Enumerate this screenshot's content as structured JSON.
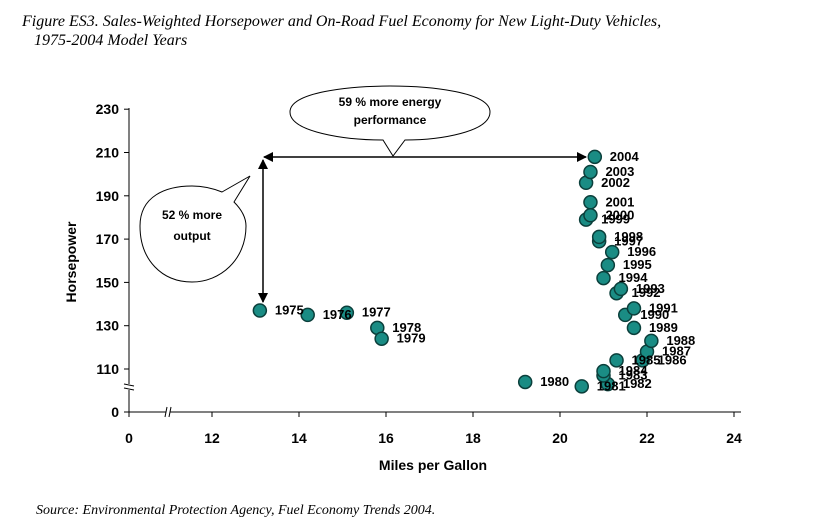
{
  "figure": {
    "caption_line1": "Figure ES3. Sales-Weighted Horsepower and On-Road Fuel Economy for New Light-Duty Vehicles,",
    "caption_line2": "1975-2004 Model Years",
    "source": "Source: Environmental Protection Agency, Fuel Economy Trends 2004."
  },
  "colors": {
    "marker_fill": "#1a8c84",
    "marker_stroke": "#0b3f3b",
    "axis": "#000000"
  },
  "chart_data": {
    "type": "scatter",
    "title": "",
    "xlabel": "Miles per Gallon",
    "ylabel": "Horsepower",
    "x_ticks": [
      0,
      12,
      14,
      16,
      18,
      20,
      22,
      24
    ],
    "y_ticks": [
      0,
      110,
      130,
      150,
      170,
      190,
      210,
      230
    ],
    "xlim": [
      12,
      24
    ],
    "ylim": [
      98,
      230
    ],
    "axis_break": {
      "x": "between 0 and 12",
      "y": "between 0 and 110"
    },
    "grid": false,
    "legend": "none",
    "points": [
      {
        "label": "1975",
        "x": 13.1,
        "y": 137
      },
      {
        "label": "1976",
        "x": 14.2,
        "y": 135
      },
      {
        "label": "1977",
        "x": 15.1,
        "y": 136
      },
      {
        "label": "1978",
        "x": 15.8,
        "y": 129
      },
      {
        "label": "1979",
        "x": 15.9,
        "y": 124
      },
      {
        "label": "1980",
        "x": 19.2,
        "y": 104
      },
      {
        "label": "1981",
        "x": 20.5,
        "y": 102
      },
      {
        "label": "1982",
        "x": 21.1,
        "y": 103
      },
      {
        "label": "1983",
        "x": 21.0,
        "y": 107
      },
      {
        "label": "1984",
        "x": 21.0,
        "y": 109
      },
      {
        "label": "1985",
        "x": 21.3,
        "y": 114
      },
      {
        "label": "1986",
        "x": 21.9,
        "y": 114
      },
      {
        "label": "1987",
        "x": 22.0,
        "y": 118
      },
      {
        "label": "1988",
        "x": 22.1,
        "y": 123
      },
      {
        "label": "1989",
        "x": 21.7,
        "y": 129
      },
      {
        "label": "1990",
        "x": 21.5,
        "y": 135
      },
      {
        "label": "1991",
        "x": 21.7,
        "y": 138
      },
      {
        "label": "1992",
        "x": 21.3,
        "y": 145
      },
      {
        "label": "1993",
        "x": 21.4,
        "y": 147
      },
      {
        "label": "1994",
        "x": 21.0,
        "y": 152
      },
      {
        "label": "1995",
        "x": 21.1,
        "y": 158
      },
      {
        "label": "1996",
        "x": 21.2,
        "y": 164
      },
      {
        "label": "1997",
        "x": 20.9,
        "y": 169
      },
      {
        "label": "1998",
        "x": 20.9,
        "y": 171
      },
      {
        "label": "1999",
        "x": 20.6,
        "y": 179
      },
      {
        "label": "2000",
        "x": 20.7,
        "y": 181
      },
      {
        "label": "2001",
        "x": 20.7,
        "y": 187
      },
      {
        "label": "2002",
        "x": 20.6,
        "y": 196
      },
      {
        "label": "2003",
        "x": 20.7,
        "y": 201
      },
      {
        "label": "2004",
        "x": 20.8,
        "y": 208
      }
    ],
    "annotations": {
      "energy_callout": {
        "line1": "59 % more energy",
        "line2": "performance"
      },
      "output_callout": {
        "line1": "52 % more",
        "line2": "output"
      }
    }
  }
}
